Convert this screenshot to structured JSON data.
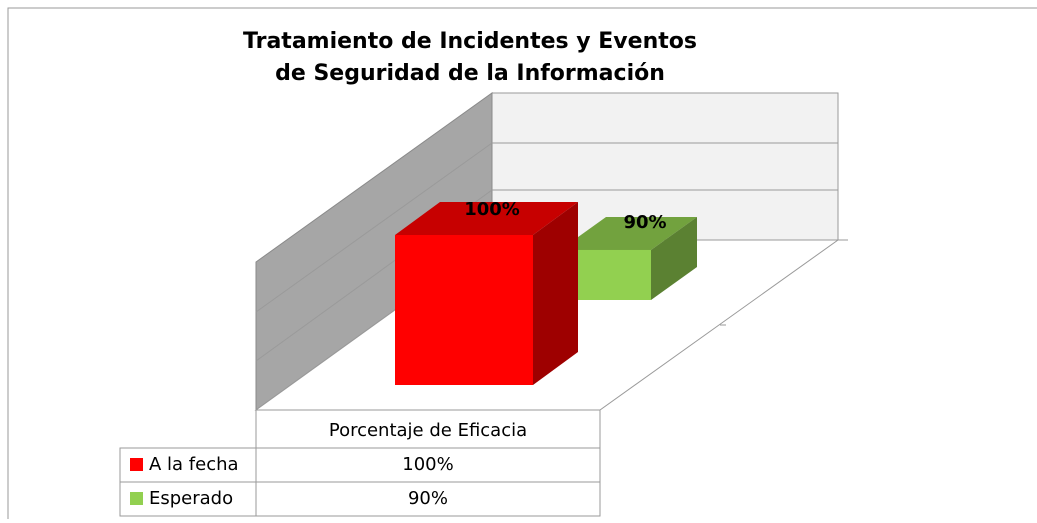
{
  "chart_data": {
    "type": "bar3d",
    "title": [
      "Tratamiento de Incidentes y Eventos",
      "de Seguridad de la Información"
    ],
    "categories": [
      "Porcentaje de Eficacia"
    ],
    "series": [
      {
        "name": "A la fecha",
        "color": "#ff0000",
        "values": [
          100
        ],
        "value_labels": [
          "100%"
        ]
      },
      {
        "name": "Esperado",
        "color": "#92d050",
        "values": [
          90
        ],
        "value_labels": [
          "90%"
        ]
      }
    ]
  }
}
